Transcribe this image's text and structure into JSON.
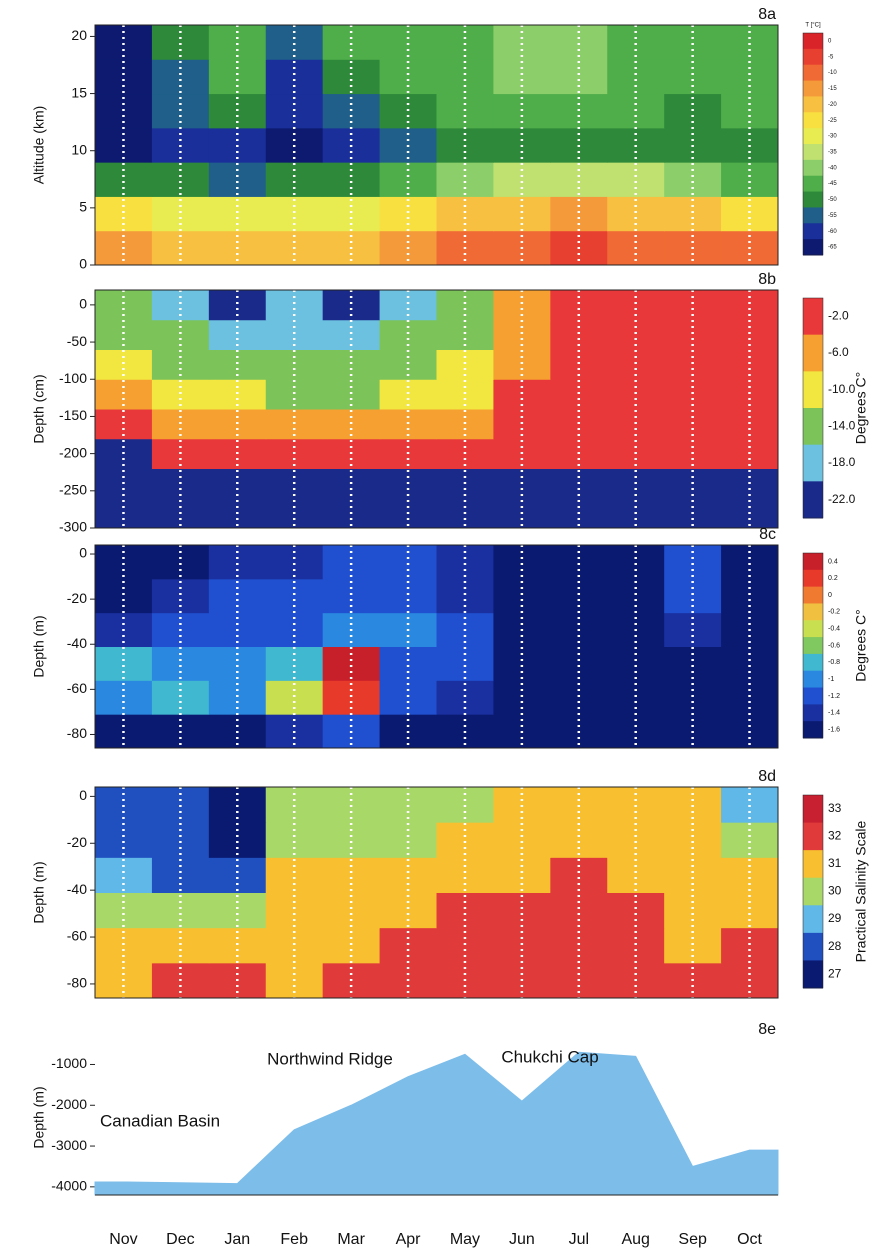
{
  "chart_data": [
    {
      "type": "heatmap",
      "title": "8a",
      "ylabel": "Altitude (km)",
      "ylim": [
        0,
        21
      ],
      "yticks": [
        0,
        5,
        10,
        15,
        20
      ],
      "z": [
        [
          -15,
          -20,
          -20,
          -20,
          -20,
          -15,
          -10,
          -10,
          -5,
          -10,
          -10,
          -10
        ],
        [
          -25,
          -30,
          -30,
          -30,
          -30,
          -25,
          -20,
          -20,
          -15,
          -20,
          -20,
          -25
        ],
        [
          -50,
          -50,
          -55,
          -50,
          -50,
          -45,
          -40,
          -35,
          -35,
          -35,
          -40,
          -45
        ],
        [
          -65,
          -60,
          -60,
          -65,
          -60,
          -55,
          -50,
          -50,
          -50,
          -50,
          -50,
          -50
        ],
        [
          -65,
          -55,
          -50,
          -60,
          -55,
          -50,
          -45,
          -45,
          -45,
          -45,
          -50,
          -45
        ],
        [
          -65,
          -55,
          -45,
          -60,
          -50,
          -45,
          -45,
          -40,
          -40,
          -45,
          -45,
          -45
        ],
        [
          -65,
          -50,
          -45,
          -55,
          -45,
          -45,
          -45,
          -40,
          -40,
          -45,
          -45,
          -45
        ]
      ],
      "colorbar": {
        "label": "T [°C]",
        "ticks": [
          0,
          -5,
          -10,
          -15,
          -20,
          -25,
          -30,
          -35,
          -40,
          -45,
          -50,
          -55,
          -60,
          -65
        ],
        "colors": [
          "#d9242a",
          "#e84030",
          "#f06a35",
          "#f59a3a",
          "#f8c040",
          "#f8e040",
          "#e8ec50",
          "#c0e070",
          "#8ccf6a",
          "#4fae4a",
          "#2e8a3a",
          "#1f5f8a",
          "#1a2f9a",
          "#0d1a70"
        ]
      }
    },
    {
      "type": "heatmap",
      "title": "8b",
      "ylabel": "Depth (cm)",
      "ylim": [
        -300,
        20
      ],
      "yticks": [
        0,
        -50,
        -100,
        -150,
        -200,
        -250,
        -300
      ],
      "z": [
        [
          -22,
          -22,
          -22,
          -22,
          -22,
          -22,
          -22,
          -22,
          -22,
          -22,
          -22,
          -22
        ],
        [
          -22,
          -22,
          -22,
          -22,
          -22,
          -22,
          -22,
          -22,
          -22,
          -22,
          -22,
          -22
        ],
        [
          -22,
          -2,
          -2,
          -2,
          -2,
          -2,
          -2,
          -2,
          -2,
          -2,
          -2,
          -2
        ],
        [
          -2,
          -6,
          -6,
          -6,
          -6,
          -6,
          -6,
          -2,
          -2,
          -2,
          -2,
          -2
        ],
        [
          -6,
          -10,
          -10,
          -14,
          -14,
          -10,
          -10,
          -2,
          -2,
          -2,
          -2,
          -2
        ],
        [
          -10,
          -14,
          -14,
          -14,
          -14,
          -14,
          -10,
          -6,
          -2,
          -2,
          -2,
          -2
        ],
        [
          -14,
          -14,
          -18,
          -18,
          -18,
          -14,
          -14,
          -6,
          -2,
          -2,
          -2,
          -2
        ],
        [
          -14,
          -18,
          -22,
          -18,
          -22,
          -18,
          -14,
          -6,
          -2,
          -2,
          -2,
          -2
        ]
      ],
      "colorbar": {
        "label": "Degrees C°",
        "ticks": [
          {
            "value": -2,
            "label": "-2.0"
          },
          {
            "value": -6,
            "label": "-6.0"
          },
          {
            "value": -10,
            "label": "-10.0"
          },
          {
            "value": -14,
            "label": "-14.0"
          },
          {
            "value": -18,
            "label": "-18.0"
          },
          {
            "value": -22,
            "label": "-22.0"
          }
        ],
        "colors": [
          "#e8383a",
          "#f5a030",
          "#f2e640",
          "#7cc45a",
          "#6cc0e0",
          "#1a2a8a"
        ]
      }
    },
    {
      "type": "heatmap",
      "title": "8c",
      "ylabel": "Depth (m)",
      "ylim": [
        -86,
        4
      ],
      "yticks": [
        0,
        -20,
        -40,
        -60,
        -80
      ],
      "z": [
        [
          -1.6,
          -1.6,
          -1.6,
          -1.4,
          -1.2,
          -1.6,
          -1.6,
          -1.6,
          -1.6,
          -1.6,
          -1.6,
          -1.6
        ],
        [
          -1,
          -0.8,
          -1,
          -0.4,
          0.2,
          -1.2,
          -1.4,
          -1.6,
          -1.6,
          -1.6,
          -1.6,
          -1.6
        ],
        [
          -0.8,
          -1,
          -1,
          -0.8,
          0.4,
          -1.2,
          -1.2,
          -1.6,
          -1.6,
          -1.6,
          -1.6,
          -1.6
        ],
        [
          -1.4,
          -1.2,
          -1.2,
          -1.2,
          -1,
          -1,
          -1.2,
          -1.6,
          -1.6,
          -1.6,
          -1.4,
          -1.6
        ],
        [
          -1.6,
          -1.4,
          -1.2,
          -1.2,
          -1.2,
          -1.2,
          -1.4,
          -1.6,
          -1.6,
          -1.6,
          -1.2,
          -1.6
        ],
        [
          -1.6,
          -1.6,
          -1.4,
          -1.4,
          -1.2,
          -1.2,
          -1.4,
          -1.6,
          -1.6,
          -1.6,
          -1.2,
          -1.6
        ]
      ],
      "colorbar": {
        "label": "Degrees C°",
        "ticks": [
          0.4,
          0.2,
          0,
          -0.2,
          -0.4,
          -0.6,
          -0.8,
          -1,
          -1.2,
          -1.4,
          -1.6
        ],
        "colors": [
          "#c8202a",
          "#e83a2a",
          "#f07a30",
          "#f0c040",
          "#c8e050",
          "#80c860",
          "#40b8d0",
          "#2a88e0",
          "#2050d0",
          "#1a30a0",
          "#0a1a70"
        ]
      }
    },
    {
      "type": "heatmap",
      "title": "8d",
      "ylabel": "Depth (m)",
      "ylim": [
        -86,
        4
      ],
      "yticks": [
        0,
        -20,
        -40,
        -60,
        -80
      ],
      "z": [
        [
          31,
          32,
          32,
          31,
          32,
          32,
          32,
          32,
          32,
          32,
          32,
          32
        ],
        [
          31,
          31,
          31,
          31,
          31,
          32,
          32,
          32,
          32,
          32,
          31,
          32
        ],
        [
          30,
          30,
          30,
          31,
          31,
          31,
          32,
          32,
          32,
          32,
          31,
          31
        ],
        [
          29,
          28,
          28,
          31,
          31,
          31,
          31,
          31,
          32,
          31,
          31,
          31
        ],
        [
          28,
          28,
          27,
          30,
          30,
          30,
          31,
          31,
          31,
          31,
          31,
          30
        ],
        [
          28,
          28,
          27,
          30,
          30,
          30,
          30,
          31,
          31,
          31,
          31,
          29
        ]
      ],
      "colorbar": {
        "label": "Practical Salinity Scale",
        "ticks": [
          33,
          32,
          31,
          30,
          29,
          28,
          27
        ],
        "colors": [
          "#c82030",
          "#e03a3a",
          "#f8c030",
          "#a8d868",
          "#60b8e8",
          "#2050c0",
          "#0a1a70"
        ]
      }
    },
    {
      "type": "area",
      "title": "8e",
      "ylabel": "Depth (m)",
      "ylim": [
        -4200,
        -400
      ],
      "yticks": [
        -1000,
        -2000,
        -3000,
        -4000
      ],
      "categories": [
        "Nov",
        "Dec",
        "Jan",
        "Feb",
        "Mar",
        "Apr",
        "May",
        "Jun",
        "Jul",
        "Aug",
        "Sep",
        "Oct"
      ],
      "values": [
        -3880,
        -3900,
        -3920,
        -2600,
        -2000,
        -1300,
        -750,
        -1900,
        -700,
        -800,
        -3500,
        -3100
      ],
      "color": "#7dbdea",
      "annotations": [
        "Canadian Basin",
        "Northwind Ridge",
        "Chukchi Cap"
      ]
    }
  ]
}
